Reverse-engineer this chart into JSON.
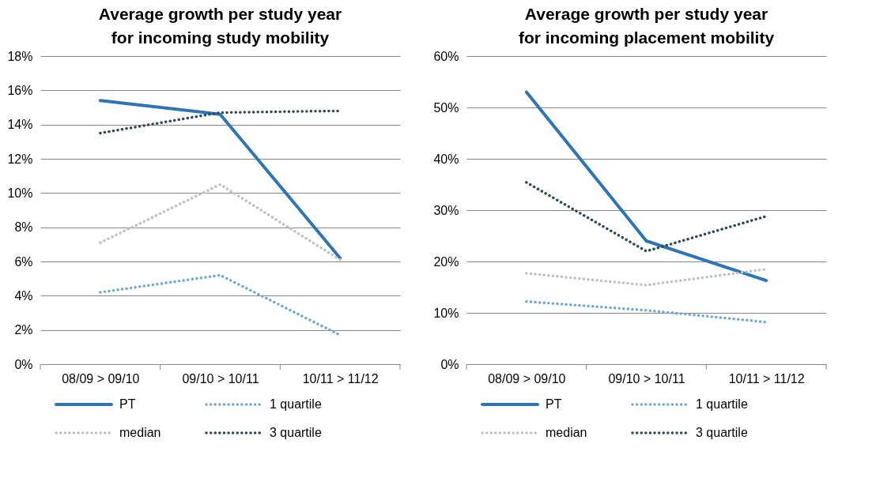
{
  "chart_data": [
    {
      "type": "line",
      "title": "Average growth per study year for incoming study mobility",
      "categories": [
        "08/09 > 09/10",
        "09/10 > 10/11",
        "10/11 > 11/12"
      ],
      "series": [
        {
          "name": "PT",
          "color": "#2e75b6",
          "line_style": "solid",
          "values": [
            15.4,
            14.6,
            6.2
          ]
        },
        {
          "name": "1 quartile",
          "color": "#6fa8d6",
          "line_style": "dotted",
          "values": [
            4.2,
            5.2,
            1.7
          ]
        },
        {
          "name": "median",
          "color": "#c0c0c0",
          "line_style": "dotted",
          "values": [
            7.1,
            10.5,
            6.1
          ]
        },
        {
          "name": "3 quartile",
          "color": "#2d4a57",
          "line_style": "dotted",
          "values": [
            13.5,
            14.7,
            14.8
          ]
        }
      ],
      "ylim": [
        0,
        18
      ],
      "yticks": [
        {
          "value": 0,
          "label": "0%"
        },
        {
          "value": 2,
          "label": "2%"
        },
        {
          "value": 4,
          "label": "4%"
        },
        {
          "value": 6,
          "label": "6%"
        },
        {
          "value": 8,
          "label": "8%"
        },
        {
          "value": 10,
          "label": "10%"
        },
        {
          "value": 12,
          "label": "12%"
        },
        {
          "value": 14,
          "label": "14%"
        },
        {
          "value": 16,
          "label": "16%"
        },
        {
          "value": 18,
          "label": "18%"
        }
      ],
      "grid": "y",
      "legend": "bottom",
      "marker": "none"
    },
    {
      "type": "line",
      "title": "Average growth per study year for incoming placement mobility",
      "categories": [
        "08/09 > 09/10",
        "09/10 > 10/11",
        "10/11 > 11/12"
      ],
      "series": [
        {
          "name": "PT",
          "color": "#2e75b6",
          "line_style": "solid",
          "values": [
            53,
            24,
            16.3
          ]
        },
        {
          "name": "1 quartile",
          "color": "#6fa8d6",
          "line_style": "dotted",
          "values": [
            12.2,
            10.5,
            8.2
          ]
        },
        {
          "name": "median",
          "color": "#c0c0c0",
          "line_style": "dotted",
          "values": [
            17.7,
            15.4,
            18.5
          ]
        },
        {
          "name": "3 quartile",
          "color": "#2d4a57",
          "line_style": "dotted",
          "values": [
            35.4,
            22,
            28.8
          ]
        }
      ],
      "ylim": [
        0,
        60
      ],
      "yticks": [
        {
          "value": 0,
          "label": "0%"
        },
        {
          "value": 10,
          "label": "10%"
        },
        {
          "value": 20,
          "label": "20%"
        },
        {
          "value": 30,
          "label": "30%"
        },
        {
          "value": 40,
          "label": "40%"
        },
        {
          "value": 50,
          "label": "50%"
        },
        {
          "value": 60,
          "label": "60%"
        }
      ],
      "grid": "y",
      "legend": "bottom",
      "marker": "none"
    }
  ]
}
